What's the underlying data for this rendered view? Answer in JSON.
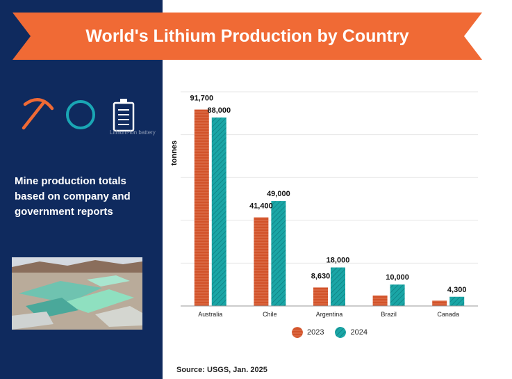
{
  "title": "World's Lithium Production by Country",
  "description": "Mine production totals based on company and government reports",
  "icon_caption": "Lithium-ion battery",
  "source": "Source:  USGS, Jan. 2025",
  "colors": {
    "banner": "#f06a35",
    "panel": "#0f2a5e",
    "series_2023": "#d2532a",
    "series_2024": "#1aa6a6",
    "circle_icon": "#1aa6b4"
  },
  "icons": [
    "pickaxe-icon",
    "circle-icon",
    "battery-icon"
  ],
  "chart_data": {
    "type": "bar",
    "title": "World's Lithium Production by Country",
    "xlabel": "",
    "ylabel": "tonnes",
    "ylim": [
      0,
      100000
    ],
    "grid": true,
    "legend": "bottom",
    "categories": [
      "Australia",
      "Chile",
      "Argentina",
      "Brazil",
      "Canada"
    ],
    "series": [
      {
        "name": "2023",
        "values": [
          91700,
          41400,
          8630,
          4900,
          2500
        ],
        "labels": [
          "91,700",
          "41,400",
          "8,630",
          "",
          ""
        ]
      },
      {
        "name": "2024",
        "values": [
          88000,
          49000,
          18000,
          10000,
          4300
        ],
        "labels": [
          "88,000",
          "49,000",
          "18,000",
          "10,000",
          "4,300"
        ]
      }
    ]
  }
}
